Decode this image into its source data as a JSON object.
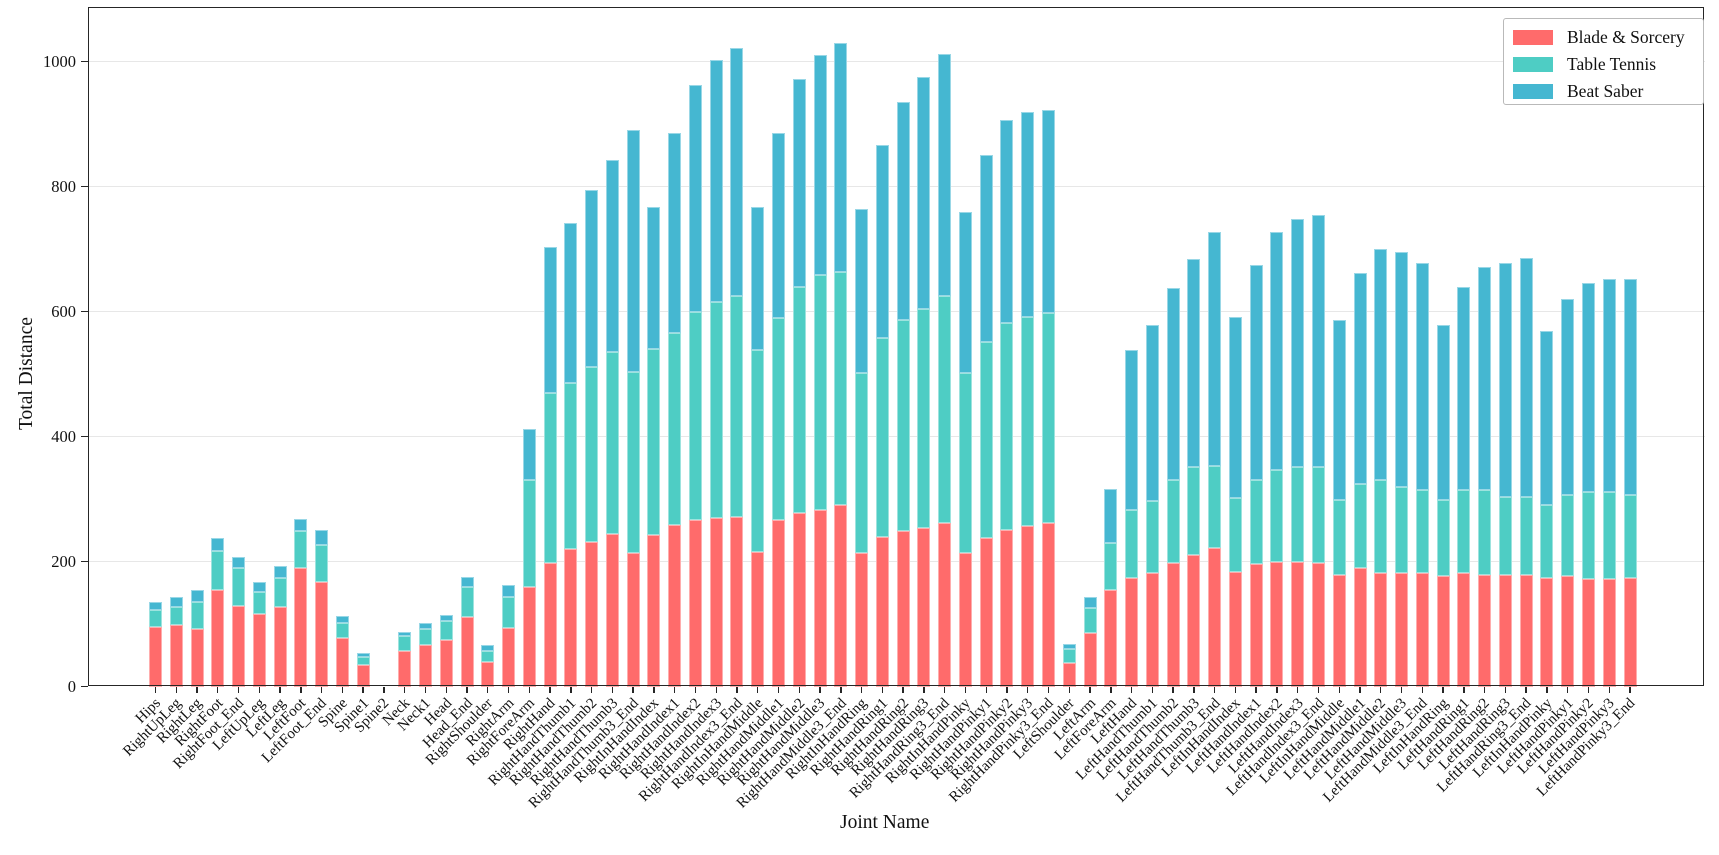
{
  "chart_data": {
    "type": "bar",
    "stacked": true,
    "title": "",
    "xlabel": "Joint Name",
    "ylabel": "Total Distance",
    "yticks": [
      0,
      200,
      400,
      600,
      800,
      1000
    ],
    "ylim": [
      0,
      1087
    ],
    "grid": "horizontal",
    "legend_position": "top-right",
    "categories": [
      "Hips",
      "RightUpLeg",
      "RightLeg",
      "RightFoot",
      "RightFoot_End",
      "LeftUpLeg",
      "LeftLeg",
      "LeftFoot",
      "LeftFoot_End",
      "Spine",
      "Spine1",
      "Spine2",
      "Neck",
      "Neck1",
      "Head",
      "Head_End",
      "RightShoulder",
      "RightArm",
      "RightForeArm",
      "RightHand",
      "RightHandThumb1",
      "RightHandThumb2",
      "RightHandThumb3",
      "RightHandThumb3_End",
      "RightInHandIndex",
      "RightHandIndex1",
      "RightHandIndex2",
      "RightHandIndex3",
      "RightHandIndex3_End",
      "RightInHandMiddle",
      "RightHandMiddle1",
      "RightHandMiddle2",
      "RightHandMiddle3",
      "RightHandMiddle3_End",
      "RightInHandRing",
      "RightHandRing1",
      "RightHandRing2",
      "RightHandRing3",
      "RightHandRing3_End",
      "RightInHandPinky",
      "RightHandPinky1",
      "RightHandPinky2",
      "RightHandPinky3",
      "RightHandPinky3_End",
      "LeftShoulder",
      "LeftArm",
      "LeftForeArm",
      "LeftHand",
      "LeftHandThumb1",
      "LeftHandThumb2",
      "LeftHandThumb3",
      "LeftHandThumb3_End",
      "LeftInHandIndex",
      "LeftHandIndex1",
      "LeftHandIndex2",
      "LeftHandIndex3",
      "LeftHandIndex3_End",
      "LeftInHandMiddle",
      "LeftHandMiddle1",
      "LeftHandMiddle2",
      "LeftHandMiddle3",
      "LeftHandMiddle3_End",
      "LeftInHandRing",
      "LeftHandRing1",
      "LeftHandRing2",
      "LeftHandRing3",
      "LeftHandRing3_End",
      "LeftInHandPinky",
      "LeftHandPinky1",
      "LeftHandPinky2",
      "LeftHandPinky3",
      "LeftHandPinky3_End"
    ],
    "series": [
      {
        "name": "Blade & Sorcery",
        "color": "#FF6B6B",
        "values": [
          96,
          98,
          92,
          155,
          129,
          116,
          128,
          189,
          168,
          78,
          35,
          0,
          57,
          67,
          75,
          111,
          40,
          93,
          160,
          197,
          220,
          232,
          244,
          214,
          243,
          259,
          267,
          270,
          272,
          216,
          266,
          278,
          283,
          290,
          214,
          240,
          249,
          253,
          261,
          214,
          237,
          250,
          257,
          262,
          38,
          85,
          155,
          173,
          182,
          198,
          210,
          221,
          184,
          196,
          200,
          200,
          198,
          179,
          189,
          182,
          181,
          181,
          177,
          182,
          179,
          179,
          179,
          174,
          177,
          172,
          172,
          174
        ]
      },
      {
        "name": "Table Tennis",
        "color": "#4ECDC4",
        "values": [
          27,
          30,
          43,
          62,
          60,
          35,
          46,
          60,
          59,
          24,
          12,
          0,
          24,
          25,
          30,
          48,
          17,
          51,
          170,
          273,
          266,
          279,
          291,
          289,
          297,
          306,
          333,
          345,
          353,
          322,
          324,
          362,
          375,
          373,
          288,
          317,
          337,
          351,
          364,
          288,
          315,
          332,
          335,
          335,
          22,
          41,
          75,
          110,
          115,
          132,
          142,
          132,
          117,
          135,
          146,
          151,
          153,
          120,
          135,
          149,
          139,
          133,
          121,
          132,
          136,
          125,
          125,
          117,
          130,
          139,
          139,
          133
        ]
      },
      {
        "name": "Beat Saber",
        "color": "#45B7D1",
        "values": [
          13,
          15,
          19,
          20,
          19,
          17,
          19,
          19,
          24,
          11,
          7,
          0,
          6,
          10,
          10,
          17,
          10,
          18,
          82,
          234,
          256,
          283,
          308,
          388,
          228,
          320,
          363,
          387,
          397,
          230,
          295,
          332,
          352,
          367,
          262,
          309,
          350,
          371,
          387,
          258,
          299,
          325,
          328,
          325,
          8,
          18,
          86,
          255,
          282,
          307,
          332,
          375,
          291,
          344,
          382,
          397,
          404,
          287,
          337,
          369,
          375,
          364,
          280,
          326,
          356,
          374,
          381,
          278,
          313,
          335,
          341,
          345
        ]
      }
    ]
  }
}
